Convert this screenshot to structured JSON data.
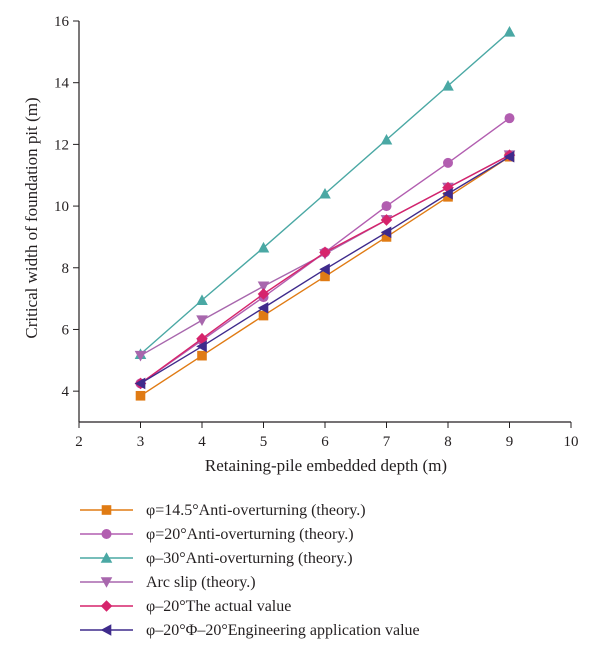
{
  "chart_data": {
    "type": "line",
    "xlabel": "Retaining-pile embedded depth (m)",
    "ylabel": "Critical width of foundation pit (m)",
    "xlim": [
      2,
      10
    ],
    "ylim": [
      3,
      16
    ],
    "xticks": [
      2,
      3,
      4,
      5,
      6,
      7,
      8,
      9,
      10
    ],
    "yticks": [
      4,
      6,
      8,
      10,
      12,
      14,
      16
    ],
    "grid": false,
    "legend_position": "bottom",
    "x": [
      3,
      4,
      5,
      6,
      7,
      8,
      9
    ],
    "series": [
      {
        "name": "φ=14.5°Anti-overturning (theory.)",
        "marker": "square",
        "color": "#e07b14",
        "values": [
          3.85,
          5.15,
          6.45,
          7.72,
          9.0,
          10.3,
          11.6
        ]
      },
      {
        "name": "φ=20°Anti-overturning (theory.)",
        "marker": "circle",
        "color": "#b25eb0",
        "values": [
          4.25,
          5.65,
          7.05,
          8.5,
          10.0,
          11.4,
          12.85
        ]
      },
      {
        "name": "φ–30°Anti-overturning (theory.)",
        "marker": "triangle-up",
        "color": "#4aa8a4",
        "values": [
          5.2,
          6.95,
          8.65,
          10.4,
          12.15,
          13.9,
          15.65
        ]
      },
      {
        "name": "Arc slip (theory.)",
        "marker": "triangle-down",
        "color": "#a867ad",
        "values": [
          5.15,
          6.3,
          7.4,
          8.45,
          9.55,
          10.6,
          11.65
        ]
      },
      {
        "name": "φ–20°The actual value",
        "marker": "diamond",
        "color": "#d6246c",
        "values": [
          4.25,
          5.7,
          7.15,
          8.5,
          9.55,
          10.6,
          11.65
        ]
      },
      {
        "name": "φ–20°Φ–20°Engineering application value",
        "marker": "triangle-left",
        "color": "#3f2b8c",
        "values": [
          4.25,
          5.45,
          6.7,
          7.95,
          9.15,
          10.4,
          11.6
        ]
      }
    ]
  }
}
